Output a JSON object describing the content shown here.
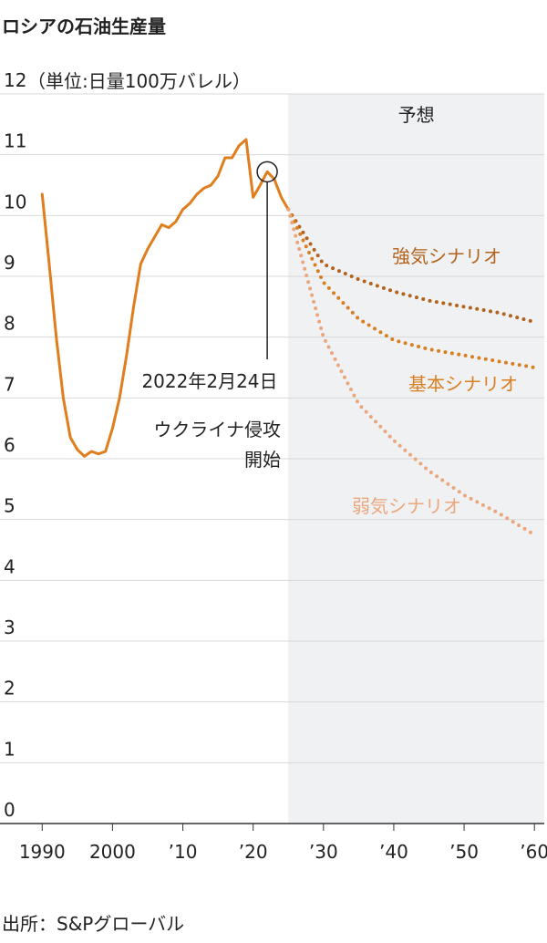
{
  "chart_data": {
    "type": "line",
    "title": "ロシアの石油生産量",
    "y_label": "（単位:日量100万バレル）",
    "source": "出所：S&Pグローバル",
    "forecast_start": 2025,
    "forecast_label": "予想",
    "event": {
      "x": 2022,
      "y": 10.72,
      "date_label": "2022年2月24日",
      "lines": [
        "ウクライナ侵攻",
        "開始"
      ]
    },
    "xlim": [
      1984,
      2061.4
    ],
    "ylim": [
      0,
      12
    ],
    "xticks": [
      1990,
      2000,
      {
        "value": 2010,
        "label": "’10"
      },
      {
        "value": 2020,
        "label": "’20"
      },
      {
        "value": 2030,
        "label": "’30"
      },
      {
        "value": 2040,
        "label": "’40"
      },
      {
        "value": 2050,
        "label": "’50"
      },
      {
        "value": 2060,
        "label": "’60"
      }
    ],
    "yticks": [
      0,
      1,
      2,
      3,
      4,
      5,
      6,
      7,
      8,
      9,
      10,
      11,
      12
    ],
    "grid": true,
    "series": [
      {
        "color": "#e07d1c",
        "style": "solid",
        "x": [
          1990,
          1991,
          1992,
          1993,
          1994,
          1995,
          1996,
          1997,
          1998,
          1999,
          2000,
          2001,
          2002,
          2003,
          2004,
          2005,
          2006,
          2007,
          2008,
          2009,
          2010,
          2011,
          2012,
          2013,
          2014,
          2015,
          2016,
          2017,
          2018,
          2019,
          2020,
          2021,
          2022,
          2023,
          2024,
          2025
        ],
        "values": [
          10.35,
          9.2,
          8.0,
          7.0,
          6.35,
          6.15,
          6.04,
          6.12,
          6.08,
          6.12,
          6.5,
          7.0,
          7.7,
          8.5,
          9.2,
          9.45,
          9.65,
          9.85,
          9.8,
          9.9,
          10.1,
          10.2,
          10.35,
          10.45,
          10.5,
          10.65,
          10.95,
          10.95,
          11.15,
          11.25,
          10.3,
          10.5,
          10.72,
          10.6,
          10.3,
          10.1
        ]
      },
      {
        "name": "強気シナリオ",
        "color": "#b3621c",
        "style": "dotted",
        "x": [
          2025,
          2030,
          2035,
          2040,
          2045,
          2050,
          2055,
          2060
        ],
        "values": [
          10.1,
          9.2,
          8.95,
          8.75,
          8.6,
          8.5,
          8.4,
          8.25
        ]
      },
      {
        "name": "基本シナリオ",
        "color": "#d87f22",
        "style": "dotted",
        "x": [
          2025,
          2030,
          2035,
          2040,
          2045,
          2050,
          2055,
          2060
        ],
        "values": [
          10.1,
          8.9,
          8.3,
          7.95,
          7.8,
          7.7,
          7.6,
          7.5
        ]
      },
      {
        "name": "弱気シナリオ",
        "color": "#eba67c",
        "style": "dotted",
        "x": [
          2025,
          2030,
          2035,
          2040,
          2045,
          2050,
          2055,
          2060
        ],
        "values": [
          10.1,
          8.0,
          6.9,
          6.3,
          5.8,
          5.4,
          5.1,
          4.75
        ]
      }
    ]
  }
}
